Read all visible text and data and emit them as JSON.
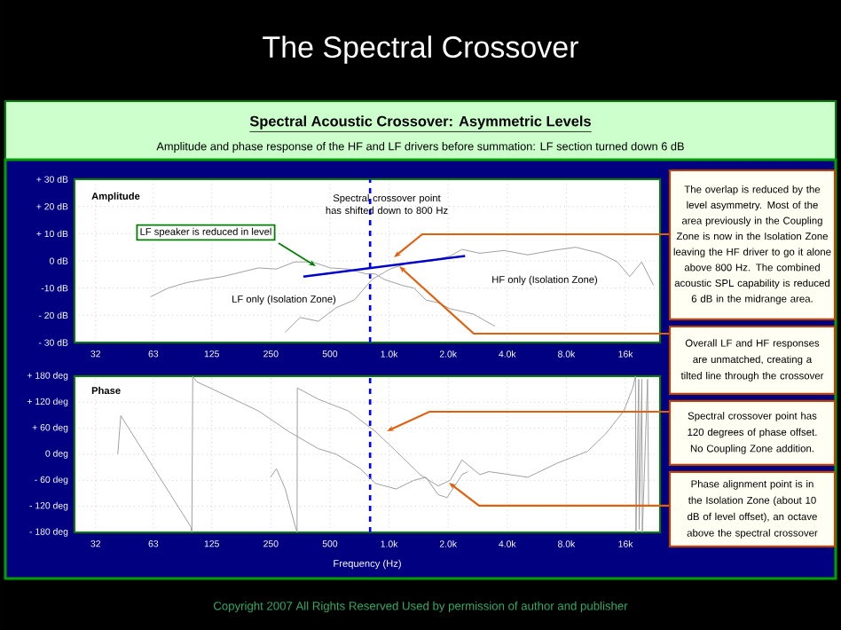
{
  "chart_data": [
    {
      "type": "other",
      "title": "The Spectral Crossover",
      "annotations": [
        "Copyright 2007    All Rights Reserved    Used by permission of author and publisher"
      ]
    },
    {
      "type": "line",
      "title": "Spectral Acoustic Crossover: Asymmetric Levels",
      "subtitle": "Amplitude and phase response of the HF and LF drivers before summation: LF section turned down 6 dB",
      "log": "x",
      "xlim": [
        25,
        24000
      ],
      "ylim": [
        -30,
        30
      ],
      "xticks": [
        32,
        63,
        125,
        250,
        500,
        {
          "value": 1000,
          "label": "1.0k"
        },
        {
          "value": 2000,
          "label": "2.0k"
        },
        {
          "value": 4000,
          "label": "4.0k"
        },
        {
          "value": 8000,
          "label": "8.0k"
        },
        {
          "value": 16000,
          "label": "16k"
        }
      ],
      "yticks": [
        {
          "value": 30,
          "label": "+ 30 dB"
        },
        {
          "value": 20,
          "label": "+ 20 dB"
        },
        {
          "value": 10,
          "label": "+ 10 dB"
        },
        {
          "value": 0,
          "label": "0 dB"
        },
        {
          "value": -10,
          "label": "-10 dB"
        },
        {
          "value": -20,
          "label": "- 20 dB"
        },
        {
          "value": -30,
          "label": "- 30 dB"
        }
      ],
      "grid": true,
      "marker": "none",
      "line_style": "solid",
      "series": [
        {
          "color": "#a0a0a0",
          "x": [
            61,
            75,
            93,
            115,
            142,
            175,
            216,
            267,
            330,
            406,
            502,
            620,
            765,
            850,
            944,
            1165,
            1340,
            1543,
            1777,
            2048,
            2352,
            2700,
            3117,
            3460
          ],
          "values": [
            -13.2,
            -10.0,
            -8.0,
            -6.8,
            -5.8,
            -4.2,
            -2.6,
            -3.0,
            -0.4,
            -0.4,
            -2.6,
            -3.0,
            -4.8,
            -4.8,
            -6.8,
            -9.0,
            -10.0,
            -14.4,
            -15.4,
            -17.6,
            -18.6,
            -19.6,
            -22.2,
            -24.0
          ]
        },
        {
          "color": "#a0a0a0",
          "x": [
            296,
            353,
            436,
            538,
            665,
            820,
            1012,
            1250,
            1660,
            2048,
            2352,
            2900,
            3850,
            5090,
            6750,
            8950,
            11840,
            14560,
            16830,
            19360,
            22240
          ],
          "values": [
            -26.2,
            -20.8,
            -22.2,
            -17.2,
            -14.4,
            -6.8,
            -3.0,
            -0.8,
            0,
            1.8,
            4.2,
            2.8,
            3.8,
            2.2,
            3.8,
            5.0,
            2.8,
            -0.4,
            -5.8,
            -0.4,
            -9.0
          ]
        },
        {
          "color": "#0000cc",
          "x": [
            366,
            2440
          ],
          "values": [
            -5.8,
            1.8
          ]
        }
      ],
      "ref_lines": [
        {
          "axis": "x",
          "value": 800,
          "color": "#0000ff",
          "line_style": "dashed"
        }
      ],
      "annotations": [
        "Amplitude",
        "Spectral crossover point has shifted down to 800 Hz",
        "LF speaker is reduced in level",
        "LF only (Isolation Zone)",
        "HF only (Isolation Zone)",
        "The overlap is reduced by the level asymmetry. Most of the area previously in the Coupling Zone is now in the Isolation Zone leaving the HF driver to go it alone above 800 Hz. The combined acoustic SPL capability is reduced 6 dB in the midrange area.",
        "Overall LF and HF responses are unmatched, creating a tilted line through the crossover"
      ]
    },
    {
      "type": "line",
      "xlabel": "Frequency (Hz)",
      "log": "x",
      "xlim": [
        25,
        24000
      ],
      "ylim": [
        -180,
        180
      ],
      "xticks": [
        32,
        63,
        125,
        250,
        500,
        {
          "value": 1000,
          "label": "1.0k"
        },
        {
          "value": 2000,
          "label": "2.0k"
        },
        {
          "value": 4000,
          "label": "4.0k"
        },
        {
          "value": 8000,
          "label": "8.0k"
        },
        {
          "value": 16000,
          "label": "16k"
        }
      ],
      "yticks": [
        {
          "value": 180,
          "label": "+ 180 deg"
        },
        {
          "value": 120,
          "label": "+ 120 deg"
        },
        {
          "value": 60,
          "label": "+ 60 deg"
        },
        {
          "value": 0,
          "label": "0 deg"
        },
        {
          "value": -60,
          "label": "- 60 deg"
        },
        {
          "value": -120,
          "label": "- 120 deg"
        },
        {
          "value": -180,
          "label": "- 180 deg"
        }
      ],
      "grid": true,
      "marker": "none",
      "line_style": "solid",
      "series": [
        {
          "color": "#a0a0a0",
          "x": [
            41.5,
            43,
            97.8,
            99,
            100,
            105,
            152,
            216,
            307,
            436,
            539,
            713,
            850,
            1087,
            1340,
            1543,
            1777,
            1974,
            2352,
            2521
          ],
          "values": [
            0,
            89,
            -167,
            -180,
            180,
            167,
            133,
            100,
            53,
            13,
            0,
            -33,
            -67,
            -80,
            -60,
            -53,
            -93,
            -100,
            -47,
            -40
          ]
        },
        {
          "color": "#a0a0a0",
          "x": [
            249,
            267,
            296,
            330,
            340,
            341,
            436,
            620,
            850,
            1087,
            1440,
            1777,
            2048,
            2352,
            2900,
            3228,
            5090,
            7230,
            10270,
            12680,
            15700,
            17440,
            18000,
            18100,
            18700,
            18800,
            19400,
            19500,
            20740,
            21000
          ],
          "values": [
            -53,
            -33,
            -80,
            -160,
            -180,
            153,
            127,
            100,
            53,
            7,
            -47,
            -73,
            -60,
            -13,
            -47,
            -40,
            -53,
            -20,
            7,
            47,
            100,
            153,
            180,
            -180,
            173,
            -173,
            173,
            -180,
            173,
            -120
          ]
        }
      ],
      "ref_lines": [
        {
          "axis": "x",
          "value": 800,
          "color": "#0000ff",
          "line_style": "dashed"
        }
      ],
      "annotations": [
        "Phase",
        "Spectral crossover point has 120 degrees of phase offset. No Coupling Zone addition.",
        "Phase alignment point is in the Isolation Zone (about 10 dB of level offset), an octave above the spectral crossover"
      ]
    }
  ]
}
